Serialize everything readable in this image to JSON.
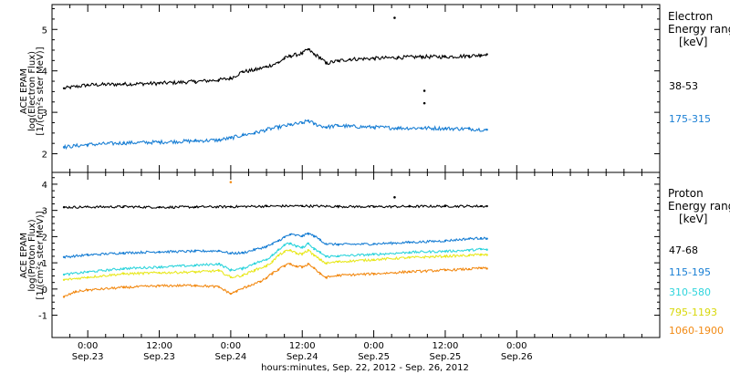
{
  "xaxis": {
    "label": "hours:minutes, Sep. 22, 2012 - Sep. 26, 2012",
    "range_hours": [
      -6,
      96
    ],
    "ticks": [
      {
        "hour": 0,
        "time": "0:00",
        "date": "Sep.23"
      },
      {
        "hour": 12,
        "time": "12:00",
        "date": "Sep.23"
      },
      {
        "hour": 24,
        "time": "0:00",
        "date": "Sep.24"
      },
      {
        "hour": 36,
        "time": "12:00",
        "date": "Sep.24"
      },
      {
        "hour": 48,
        "time": "0:00",
        "date": "Sep.25"
      },
      {
        "hour": 60,
        "time": "12:00",
        "date": "Sep.25"
      },
      {
        "hour": 72,
        "time": "0:00",
        "date": "Sep.26"
      }
    ],
    "minor_step_hours": 3
  },
  "chart_data": [
    {
      "type": "scatter",
      "panel": "electron",
      "ylabel_lines": [
        "ACE EPAM",
        "log(Electron Flux)",
        "[1/(cm²s ster MeV)]"
      ],
      "ylim": [
        1.55,
        5.6
      ],
      "yticks": [
        2,
        3,
        4,
        5
      ],
      "legend": {
        "title": [
          "Electron",
          "Energy ranges",
          "[keV]"
        ],
        "placement": "right"
      },
      "series": [
        {
          "name": "38-53",
          "color": "#000000",
          "points": [
            [
              -4,
              3.58
            ],
            [
              0,
              3.66
            ],
            [
              6,
              3.68
            ],
            [
              12,
              3.7
            ],
            [
              18,
              3.74
            ],
            [
              22,
              3.78
            ],
            [
              24,
              3.82
            ],
            [
              26,
              3.98
            ],
            [
              28,
              4.02
            ],
            [
              30,
              4.1
            ],
            [
              32,
              4.2
            ],
            [
              33,
              4.3
            ],
            [
              34,
              4.36
            ],
            [
              36,
              4.42
            ],
            [
              37,
              4.52
            ],
            [
              38,
              4.4
            ],
            [
              39,
              4.32
            ],
            [
              40,
              4.18
            ],
            [
              42,
              4.24
            ],
            [
              44,
              4.28
            ],
            [
              48,
              4.3
            ],
            [
              52,
              4.32
            ],
            [
              56,
              4.34
            ],
            [
              60,
              4.34
            ],
            [
              64,
              4.36
            ],
            [
              66,
              4.38
            ],
            [
              67,
              4.4
            ]
          ],
          "outliers": [
            [
              51.5,
              5.28
            ],
            [
              56.5,
              3.52
            ],
            [
              56.5,
              3.22
            ]
          ]
        },
        {
          "name": "175-315",
          "color": "#1a7fd4",
          "points": [
            [
              -4,
              2.16
            ],
            [
              0,
              2.22
            ],
            [
              6,
              2.26
            ],
            [
              12,
              2.28
            ],
            [
              18,
              2.31
            ],
            [
              22,
              2.33
            ],
            [
              24,
              2.38
            ],
            [
              26,
              2.45
            ],
            [
              28,
              2.5
            ],
            [
              30,
              2.58
            ],
            [
              32,
              2.64
            ],
            [
              34,
              2.7
            ],
            [
              36,
              2.74
            ],
            [
              37,
              2.8
            ],
            [
              38,
              2.72
            ],
            [
              40,
              2.64
            ],
            [
              42,
              2.68
            ],
            [
              44,
              2.66
            ],
            [
              48,
              2.64
            ],
            [
              52,
              2.62
            ],
            [
              56,
              2.62
            ],
            [
              60,
              2.61
            ],
            [
              64,
              2.6
            ],
            [
              67,
              2.58
            ]
          ],
          "outliers": []
        }
      ]
    },
    {
      "type": "scatter",
      "panel": "proton",
      "ylabel_lines": [
        "ACE EPAM",
        "log(Proton Flux)",
        "[1/(cm²s ster MeV)]"
      ],
      "ylim": [
        -1.85,
        4.45
      ],
      "yticks": [
        -1,
        0,
        1,
        2,
        3,
        4
      ],
      "legend": {
        "title": [
          "Proton",
          "Energy ranges",
          "[keV]"
        ],
        "placement": "right"
      },
      "series": [
        {
          "name": "47-68",
          "color": "#000000",
          "points": [
            [
              -4,
              3.12
            ],
            [
              6,
              3.14
            ],
            [
              12,
              3.12
            ],
            [
              18,
              3.13
            ],
            [
              24,
              3.14
            ],
            [
              30,
              3.16
            ],
            [
              36,
              3.17
            ],
            [
              42,
              3.15
            ],
            [
              48,
              3.14
            ],
            [
              54,
              3.15
            ],
            [
              60,
              3.16
            ],
            [
              66,
              3.16
            ],
            [
              67,
              3.16
            ]
          ],
          "outliers": [
            [
              51.5,
              3.5
            ]
          ]
        },
        {
          "name": "115-195",
          "color": "#1a7fd4",
          "points": [
            [
              -4,
              1.22
            ],
            [
              0,
              1.3
            ],
            [
              6,
              1.38
            ],
            [
              12,
              1.42
            ],
            [
              18,
              1.44
            ],
            [
              22,
              1.46
            ],
            [
              24,
              1.36
            ],
            [
              26,
              1.38
            ],
            [
              28,
              1.5
            ],
            [
              30,
              1.62
            ],
            [
              31,
              1.72
            ],
            [
              32,
              1.84
            ],
            [
              33,
              1.98
            ],
            [
              34,
              2.08
            ],
            [
              36,
              2.02
            ],
            [
              37,
              2.12
            ],
            [
              38,
              2.02
            ],
            [
              39,
              1.88
            ],
            [
              40,
              1.72
            ],
            [
              42,
              1.7
            ],
            [
              48,
              1.72
            ],
            [
              54,
              1.78
            ],
            [
              60,
              1.84
            ],
            [
              64,
              1.92
            ],
            [
              66,
              1.94
            ],
            [
              67,
              1.92
            ]
          ],
          "outliers": []
        },
        {
          "name": "310-580",
          "color": "#2ed4dc",
          "points": [
            [
              -4,
              0.55
            ],
            [
              0,
              0.65
            ],
            [
              6,
              0.78
            ],
            [
              12,
              0.84
            ],
            [
              18,
              0.9
            ],
            [
              22,
              0.96
            ],
            [
              24,
              0.72
            ],
            [
              26,
              0.78
            ],
            [
              28,
              0.98
            ],
            [
              30,
              1.12
            ],
            [
              31,
              1.3
            ],
            [
              32,
              1.5
            ],
            [
              33,
              1.68
            ],
            [
              34,
              1.74
            ],
            [
              35,
              1.62
            ],
            [
              36,
              1.58
            ],
            [
              37,
              1.74
            ],
            [
              38,
              1.52
            ],
            [
              39,
              1.4
            ],
            [
              40,
              1.24
            ],
            [
              42,
              1.26
            ],
            [
              48,
              1.32
            ],
            [
              54,
              1.4
            ],
            [
              60,
              1.44
            ],
            [
              64,
              1.48
            ],
            [
              66,
              1.52
            ],
            [
              67,
              1.5
            ]
          ],
          "outliers": []
        },
        {
          "name": "795-1193",
          "color": "#e8e81e",
          "points": [
            [
              -4,
              0.35
            ],
            [
              0,
              0.45
            ],
            [
              6,
              0.58
            ],
            [
              12,
              0.62
            ],
            [
              18,
              0.65
            ],
            [
              22,
              0.7
            ],
            [
              24,
              0.45
            ],
            [
              26,
              0.52
            ],
            [
              28,
              0.72
            ],
            [
              30,
              0.88
            ],
            [
              31,
              1.05
            ],
            [
              32,
              1.28
            ],
            [
              33,
              1.42
            ],
            [
              34,
              1.48
            ],
            [
              35,
              1.36
            ],
            [
              36,
              1.34
            ],
            [
              37,
              1.48
            ],
            [
              38,
              1.28
            ],
            [
              39,
              1.12
            ],
            [
              40,
              0.98
            ],
            [
              42,
              1.04
            ],
            [
              48,
              1.12
            ],
            [
              54,
              1.2
            ],
            [
              60,
              1.25
            ],
            [
              64,
              1.28
            ],
            [
              66,
              1.32
            ],
            [
              67,
              1.3
            ]
          ],
          "outliers": []
        },
        {
          "name": "1060-1900",
          "color": "#f28a14",
          "points": [
            [
              -4,
              -0.3
            ],
            [
              -2,
              -0.1
            ],
            [
              0,
              -0.04
            ],
            [
              6,
              0.06
            ],
            [
              12,
              0.12
            ],
            [
              18,
              0.14
            ],
            [
              22,
              0.08
            ],
            [
              24,
              -0.18
            ],
            [
              25,
              -0.08
            ],
            [
              27,
              0.12
            ],
            [
              29,
              0.28
            ],
            [
              30,
              0.42
            ],
            [
              31,
              0.6
            ],
            [
              32,
              0.74
            ],
            [
              33,
              0.88
            ],
            [
              34,
              0.96
            ],
            [
              35,
              0.86
            ],
            [
              36,
              0.84
            ],
            [
              37,
              0.96
            ],
            [
              38,
              0.8
            ],
            [
              39,
              0.58
            ],
            [
              40,
              0.44
            ],
            [
              42,
              0.52
            ],
            [
              48,
              0.58
            ],
            [
              54,
              0.66
            ],
            [
              60,
              0.72
            ],
            [
              64,
              0.76
            ],
            [
              66,
              0.8
            ],
            [
              67,
              0.78
            ]
          ],
          "outliers": [
            [
              24,
              4.08
            ]
          ]
        }
      ]
    }
  ]
}
